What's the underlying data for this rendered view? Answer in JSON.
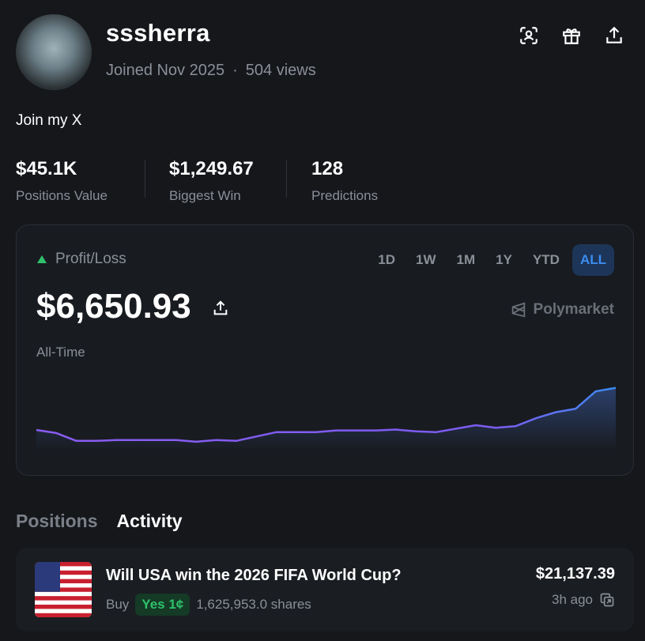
{
  "profile": {
    "username": "sssherra",
    "joined": "Joined Nov 2025",
    "separator": "·",
    "views": "504 views",
    "bio": "Join my X"
  },
  "stats": [
    {
      "value": "$45.1K",
      "label": "Positions Value"
    },
    {
      "value": "$1,249.67",
      "label": "Biggest Win"
    },
    {
      "value": "128",
      "label": "Predictions"
    }
  ],
  "pnl": {
    "title": "Profit/Loss",
    "ranges": [
      "1D",
      "1W",
      "1M",
      "1Y",
      "YTD",
      "ALL"
    ],
    "active_range": "ALL",
    "amount": "$6,650.93",
    "brand": "Polymarket",
    "period": "All-Time"
  },
  "chart_data": {
    "type": "line",
    "ylim": [
      0,
      100
    ],
    "color": "#7b5cf0",
    "values": [
      24.5,
      21,
      12,
      12,
      13,
      13,
      13,
      13,
      11,
      13,
      12,
      17,
      22,
      22,
      22,
      24,
      24,
      24,
      25,
      23,
      22,
      26,
      30,
      27,
      29,
      38,
      45,
      49,
      69,
      73
    ]
  },
  "tabs": [
    "Positions",
    "Activity"
  ],
  "active_tab": "Activity",
  "activity": [
    {
      "title": "Will USA win the 2026 FIFA World Cup?",
      "side": "Buy",
      "outcome": "Yes 1¢",
      "shares": "1,625,953.0 shares",
      "amount": "$21,137.39",
      "time": "3h ago"
    }
  ]
}
